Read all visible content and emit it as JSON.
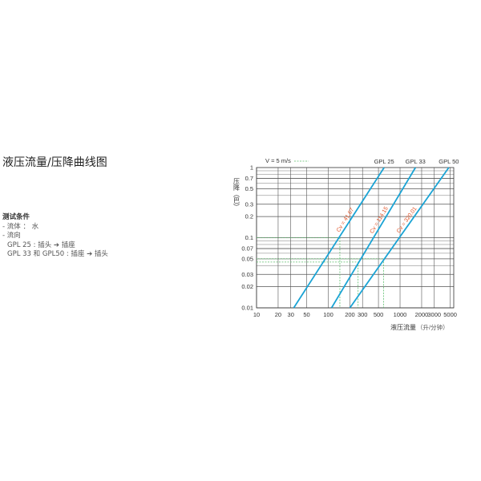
{
  "title": "液压流量/压降曲线图",
  "conditions": {
    "heading": "测试条件",
    "lines": [
      "- 流体 ： 水",
      "- 流向",
      "GPL 25 : 插头 ➔ 插座",
      "GPL 33 和 GPL50 : 插座 ➔ 插头"
    ]
  },
  "chart_data": {
    "type": "line",
    "xlabel": "液压流量",
    "xunit": "（升/分钟）",
    "ylabel": "压降（巴）",
    "xscale": "log",
    "yscale": "log",
    "xlim": [
      10,
      5600
    ],
    "ylim": [
      0.01,
      1
    ],
    "grid": true,
    "xticks": [
      10,
      20,
      30,
      50,
      100,
      200,
      300,
      500,
      1000,
      2000,
      3000,
      5000
    ],
    "yticks": [
      1,
      0.7,
      0.5,
      0.3,
      0.2,
      0.1,
      0.07,
      0.05,
      0.03,
      0.02,
      0.01
    ],
    "legend": {
      "label": "V =  5 m/s",
      "style": "dashed",
      "color": "#5fbf6f",
      "placement": "top-left"
    },
    "series": [
      {
        "name": "GPL 25",
        "cv_label": "Cv = 41.67",
        "points": [
          [
            33,
            0.01
          ],
          [
            600,
            1
          ]
        ]
      },
      {
        "name": "GPL 33",
        "cv_label": "Cv = 114.15",
        "points": [
          [
            111,
            0.01
          ],
          [
            1640,
            1
          ]
        ]
      },
      {
        "name": "GPL 50",
        "cv_label": "Cv = 320.01",
        "points": [
          [
            200,
            0.01
          ],
          [
            4780,
            1
          ]
        ]
      }
    ],
    "guides": [
      {
        "flow": 145,
        "dp": 0.1
      },
      {
        "flow": 260,
        "dp": 0.045
      },
      {
        "flow": 590,
        "dp": 0.05
      }
    ],
    "colors": {
      "line": "#1aa3d4",
      "cv_label": "#e0552a",
      "guide": "#5fbf6f",
      "grid": "#555555"
    }
  }
}
